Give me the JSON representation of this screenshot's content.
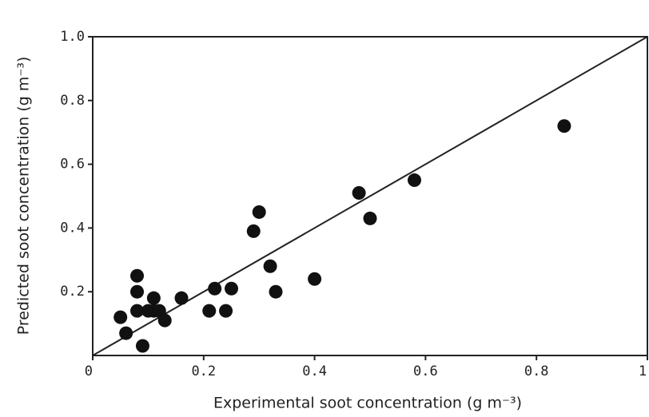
{
  "chart_data": {
    "type": "scatter",
    "x_label": "Experimental soot concentration (g m⁻³)",
    "y_label": "Predicted soot concentration (g m⁻³)",
    "x": [
      0.05,
      0.06,
      0.08,
      0.08,
      0.08,
      0.09,
      0.1,
      0.11,
      0.11,
      0.12,
      0.13,
      0.16,
      0.21,
      0.22,
      0.24,
      0.25,
      0.29,
      0.3,
      0.32,
      0.33,
      0.4,
      0.48,
      0.5,
      0.58,
      0.85
    ],
    "values": [
      0.12,
      0.07,
      0.25,
      0.2,
      0.14,
      0.03,
      0.14,
      0.14,
      0.18,
      0.14,
      0.11,
      0.18,
      0.14,
      0.21,
      0.14,
      0.21,
      0.39,
      0.45,
      0.28,
      0.2,
      0.24,
      0.51,
      0.43,
      0.55,
      0.72
    ],
    "color": "#111111",
    "xlim": [
      0,
      1
    ],
    "ylim": [
      0,
      1
    ],
    "xticks": [
      0,
      0.2,
      0.4,
      0.6,
      0.8,
      1
    ],
    "yticks": [
      0.2,
      0.4,
      0.6,
      0.8,
      {
        "value": 1,
        "label": "1.0"
      }
    ]
  }
}
